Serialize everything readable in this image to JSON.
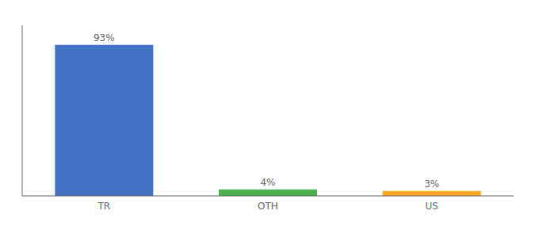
{
  "chart_data": {
    "type": "bar",
    "categories": [
      "TR",
      "OTH",
      "US"
    ],
    "values": [
      93,
      4,
      3
    ],
    "value_labels": [
      "93%",
      "4%",
      "3%"
    ],
    "colors": [
      "#4472c4",
      "#4caf50",
      "#ffa726"
    ],
    "ylim": [
      0,
      105
    ],
    "data_labels": true,
    "tick_labels": "x",
    "grid": false
  }
}
